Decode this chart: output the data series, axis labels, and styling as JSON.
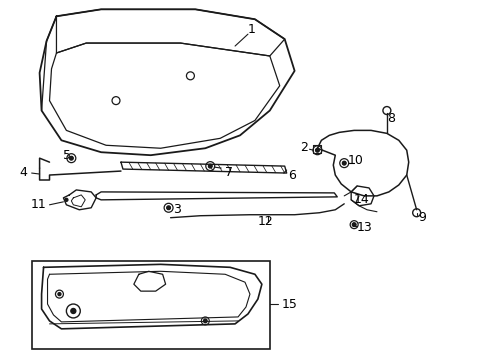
{
  "background_color": "#ffffff",
  "line_color": "#1a1a1a",
  "figsize": [
    4.89,
    3.6
  ],
  "dpi": 100
}
